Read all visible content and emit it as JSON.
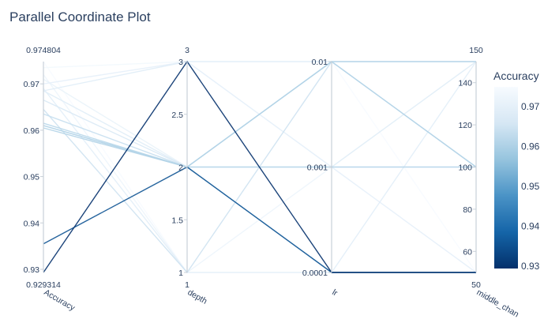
{
  "title": "Parallel Coordinate Plot",
  "chart_data": {
    "type": "parallel_coordinates",
    "title": "Parallel Coordinate Plot",
    "colorscale": [
      "#03306b",
      "#1565a8",
      "#4a93c6",
      "#96c4de",
      "#d6e7f4",
      "#f7fbff"
    ],
    "color_by": "Accuracy",
    "dimensions": [
      {
        "name": "Accuracy",
        "range": [
          0.929314,
          0.974804
        ],
        "ticks": [
          0.93,
          0.94,
          0.95,
          0.96,
          0.97
        ],
        "tick_labels": [
          "0.93",
          "0.94",
          "0.95",
          "0.96",
          "0.97"
        ],
        "min_label": "0.929314",
        "max_label": "0.974804"
      },
      {
        "name": "depth",
        "range": [
          1,
          3
        ],
        "ticks": [
          1,
          1.5,
          2,
          2.5,
          3
        ],
        "tick_labels": [
          "1",
          "1.5",
          "2",
          "2.5",
          "3"
        ],
        "min_label": "1",
        "max_label": "3"
      },
      {
        "name": "lr",
        "range": [
          0,
          2
        ],
        "categorical": true,
        "ticks": [
          0,
          1,
          2
        ],
        "tick_labels": [
          "0.0001",
          "0.001",
          "0.01"
        ],
        "min_label": "",
        "max_label": ""
      },
      {
        "name": "middle_chan",
        "range": [
          50,
          150
        ],
        "ticks": [
          60,
          80,
          100,
          120,
          140
        ],
        "tick_labels": [
          "60",
          "80",
          "100",
          "120",
          "140"
        ],
        "min_label": "50",
        "max_label": "150"
      }
    ],
    "lines": [
      [
        0.929314,
        3,
        0,
        50
      ],
      [
        0.9355,
        2,
        0,
        50
      ],
      [
        0.9605,
        2,
        2,
        100
      ],
      [
        0.961,
        2,
        0,
        50
      ],
      [
        0.961,
        2,
        1,
        100
      ],
      [
        0.9615,
        2,
        2,
        150
      ],
      [
        0.9635,
        2,
        0,
        50
      ],
      [
        0.9645,
        1,
        2,
        150
      ],
      [
        0.9665,
        2,
        2,
        100
      ],
      [
        0.9685,
        3,
        2,
        100
      ],
      [
        0.9685,
        2,
        1,
        150
      ],
      [
        0.969,
        1,
        0,
        150
      ],
      [
        0.97,
        3,
        1,
        50
      ],
      [
        0.971,
        2,
        2,
        150
      ],
      [
        0.972,
        1,
        1,
        100
      ],
      [
        0.9735,
        3,
        1,
        100
      ],
      [
        0.974804,
        1,
        2,
        50
      ]
    ],
    "colorbar": {
      "title": "Accuracy",
      "ticks": [
        0.93,
        0.94,
        0.95,
        0.96,
        0.97
      ],
      "tick_labels": [
        "0.93",
        "0.94",
        "0.95",
        "0.96",
        "0.97"
      ]
    }
  }
}
